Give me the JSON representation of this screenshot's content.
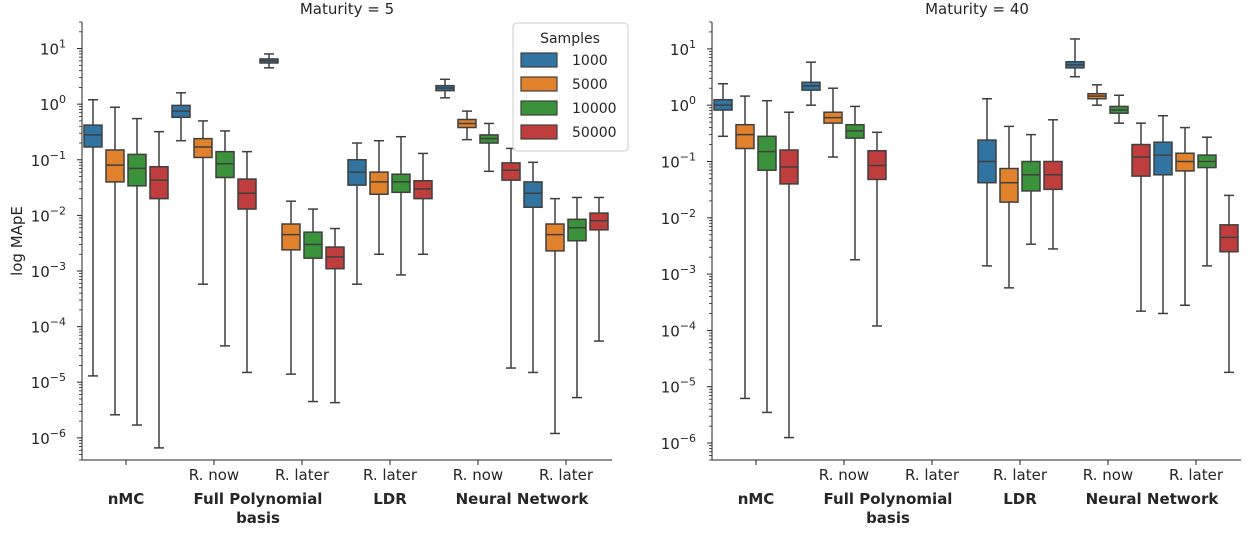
{
  "figure": {
    "colors": {
      "1000": "#3274a1",
      "5000": "#e1812c",
      "10000": "#3a923a",
      "50000": "#c03d3e"
    },
    "legend": {
      "title": "Samples",
      "entries": [
        "1000",
        "5000",
        "10000",
        "50000"
      ],
      "placement": "top-right of left panel"
    }
  },
  "chart_data": [
    {
      "type": "box",
      "title": "Maturity = 5",
      "ylabel": "log MApE",
      "yscale": "log",
      "ylim": [
        4e-07,
        30
      ],
      "yticks": [
        {
          "value": 1e-06,
          "label": "10",
          "exp": "−6"
        },
        {
          "value": 1e-05,
          "label": "10",
          "exp": "−5"
        },
        {
          "value": 0.0001,
          "label": "10",
          "exp": "−4"
        },
        {
          "value": 0.001,
          "label": "10",
          "exp": "−3"
        },
        {
          "value": 0.01,
          "label": "10",
          "exp": "−2"
        },
        {
          "value": 0.1,
          "label": "10",
          "exp": "−1"
        },
        {
          "value": 1,
          "label": "10",
          "exp": "0"
        },
        {
          "value": 10,
          "label": "10",
          "exp": "1"
        }
      ],
      "categories": [
        "",
        "R. now",
        "R. later",
        "R. later",
        "R. now",
        "R. later"
      ],
      "groups": [
        {
          "label": "nMC",
          "span": [
            0,
            0
          ]
        },
        {
          "label": "Full Polynomial\nbasis",
          "span": [
            1,
            2
          ]
        },
        {
          "label": "LDR",
          "span": [
            3,
            3
          ]
        },
        {
          "label": "Neural Network",
          "span": [
            4,
            5
          ]
        }
      ],
      "boxes": [
        {
          "cat": 0,
          "samples": "1000",
          "whislo": 1.3e-05,
          "q1": 0.17,
          "med": 0.28,
          "q3": 0.42,
          "whishi": 1.2
        },
        {
          "cat": 0,
          "samples": "5000",
          "whislo": 2.6e-06,
          "q1": 0.04,
          "med": 0.08,
          "q3": 0.15,
          "whishi": 0.88
        },
        {
          "cat": 0,
          "samples": "10000",
          "whislo": 1.7e-06,
          "q1": 0.034,
          "med": 0.07,
          "q3": 0.125,
          "whishi": 0.55
        },
        {
          "cat": 0,
          "samples": "50000",
          "whislo": 6.6e-07,
          "q1": 0.02,
          "med": 0.043,
          "q3": 0.075,
          "whishi": 0.32
        },
        {
          "cat": 1,
          "samples": "1000",
          "whislo": 0.22,
          "q1": 0.58,
          "med": 0.75,
          "q3": 0.95,
          "whishi": 1.6
        },
        {
          "cat": 1,
          "samples": "5000",
          "whislo": 0.00058,
          "q1": 0.11,
          "med": 0.17,
          "q3": 0.24,
          "whishi": 0.5
        },
        {
          "cat": 1,
          "samples": "10000",
          "whislo": 4.5e-05,
          "q1": 0.048,
          "med": 0.085,
          "q3": 0.14,
          "whishi": 0.33
        },
        {
          "cat": 1,
          "samples": "50000",
          "whislo": 1.5e-05,
          "q1": 0.013,
          "med": 0.025,
          "q3": 0.045,
          "whishi": 0.14
        },
        {
          "cat": 2,
          "samples": "1000",
          "whislo": 4.5,
          "q1": 5.5,
          "med": 6.0,
          "q3": 6.5,
          "whishi": 8.0
        },
        {
          "cat": 2,
          "samples": "5000",
          "whislo": 1.4e-05,
          "q1": 0.0024,
          "med": 0.0045,
          "q3": 0.007,
          "whishi": 0.018
        },
        {
          "cat": 2,
          "samples": "10000",
          "whislo": 4.5e-06,
          "q1": 0.0017,
          "med": 0.003,
          "q3": 0.005,
          "whishi": 0.013
        },
        {
          "cat": 2,
          "samples": "50000",
          "whislo": 4.3e-06,
          "q1": 0.0011,
          "med": 0.0018,
          "q3": 0.0027,
          "whishi": 0.0058
        },
        {
          "cat": 3,
          "samples": "1000",
          "whislo": 0.00058,
          "q1": 0.035,
          "med": 0.06,
          "q3": 0.1,
          "whishi": 0.2
        },
        {
          "cat": 3,
          "samples": "5000",
          "whislo": 0.002,
          "q1": 0.024,
          "med": 0.04,
          "q3": 0.06,
          "whishi": 0.22
        },
        {
          "cat": 3,
          "samples": "10000",
          "whislo": 0.00085,
          "q1": 0.026,
          "med": 0.04,
          "q3": 0.055,
          "whishi": 0.26
        },
        {
          "cat": 3,
          "samples": "50000",
          "whislo": 0.002,
          "q1": 0.02,
          "med": 0.03,
          "q3": 0.042,
          "whishi": 0.13
        },
        {
          "cat": 4,
          "samples": "1000",
          "whislo": 1.3,
          "q1": 1.75,
          "med": 1.95,
          "q3": 2.15,
          "whishi": 2.8
        },
        {
          "cat": 4,
          "samples": "5000",
          "whislo": 0.23,
          "q1": 0.38,
          "med": 0.45,
          "q3": 0.53,
          "whishi": 0.75
        },
        {
          "cat": 4,
          "samples": "10000",
          "whislo": 0.062,
          "q1": 0.2,
          "med": 0.24,
          "q3": 0.28,
          "whishi": 0.45
        },
        {
          "cat": 4,
          "samples": "50000",
          "whislo": 1.8e-05,
          "q1": 0.043,
          "med": 0.065,
          "q3": 0.088,
          "whishi": 0.16
        },
        {
          "cat": 5,
          "samples": "1000",
          "whislo": 1.5e-05,
          "q1": 0.014,
          "med": 0.025,
          "q3": 0.04,
          "whishi": 0.09
        },
        {
          "cat": 5,
          "samples": "5000",
          "whislo": 1.2e-06,
          "q1": 0.0023,
          "med": 0.0045,
          "q3": 0.007,
          "whishi": 0.02
        },
        {
          "cat": 5,
          "samples": "10000",
          "whislo": 5.3e-06,
          "q1": 0.0035,
          "med": 0.006,
          "q3": 0.0085,
          "whishi": 0.021
        },
        {
          "cat": 5,
          "samples": "50000",
          "whislo": 5.5e-05,
          "q1": 0.0055,
          "med": 0.008,
          "q3": 0.011,
          "whishi": 0.021
        }
      ]
    },
    {
      "type": "box",
      "title": "Maturity = 40",
      "ylabel": "",
      "yscale": "log",
      "ylim": [
        5e-07,
        30
      ],
      "yticks": [
        {
          "value": 1e-06,
          "label": "10",
          "exp": "−6"
        },
        {
          "value": 1e-05,
          "label": "10",
          "exp": "−5"
        },
        {
          "value": 0.0001,
          "label": "10",
          "exp": "−4"
        },
        {
          "value": 0.001,
          "label": "10",
          "exp": "−3"
        },
        {
          "value": 0.01,
          "label": "10",
          "exp": "−2"
        },
        {
          "value": 0.1,
          "label": "10",
          "exp": "−1"
        },
        {
          "value": 1,
          "label": "10",
          "exp": "0"
        },
        {
          "value": 10,
          "label": "10",
          "exp": "1"
        }
      ],
      "categories": [
        "",
        "R. now",
        "R. later",
        "R. later",
        "R. now",
        "R. later"
      ],
      "groups": [
        {
          "label": "nMC",
          "span": [
            0,
            0
          ]
        },
        {
          "label": "Full Polynomial\nbasis",
          "span": [
            1,
            2
          ]
        },
        {
          "label": "LDR",
          "span": [
            3,
            3
          ]
        },
        {
          "label": "Neural Network",
          "span": [
            4,
            5
          ]
        }
      ],
      "boxes": [
        {
          "cat": 0,
          "samples": "1000",
          "whislo": 0.28,
          "q1": 0.82,
          "med": 1.0,
          "q3": 1.25,
          "whishi": 2.4
        },
        {
          "cat": 0,
          "samples": "5000",
          "whislo": 6.2e-06,
          "q1": 0.17,
          "med": 0.3,
          "q3": 0.45,
          "whishi": 1.45
        },
        {
          "cat": 0,
          "samples": "10000",
          "whislo": 3.5e-06,
          "q1": 0.07,
          "med": 0.15,
          "q3": 0.28,
          "whishi": 1.2
        },
        {
          "cat": 0,
          "samples": "50000",
          "whislo": 1.25e-06,
          "q1": 0.04,
          "med": 0.08,
          "q3": 0.16,
          "whishi": 0.75
        },
        {
          "cat": 1,
          "samples": "1000",
          "whislo": 1.0,
          "q1": 1.85,
          "med": 2.2,
          "q3": 2.55,
          "whishi": 5.8
        },
        {
          "cat": 1,
          "samples": "5000",
          "whislo": 0.12,
          "q1": 0.48,
          "med": 0.6,
          "q3": 0.75,
          "whishi": 2.0
        },
        {
          "cat": 1,
          "samples": "10000",
          "whislo": 0.0018,
          "q1": 0.26,
          "med": 0.35,
          "q3": 0.45,
          "whishi": 0.95
        },
        {
          "cat": 1,
          "samples": "50000",
          "whislo": 0.00012,
          "q1": 0.048,
          "med": 0.085,
          "q3": 0.155,
          "whishi": 0.33
        },
        {
          "cat": 3,
          "samples": "1000",
          "whislo": 0.0014,
          "q1": 0.042,
          "med": 0.1,
          "q3": 0.24,
          "whishi": 1.3
        },
        {
          "cat": 3,
          "samples": "5000",
          "whislo": 0.00057,
          "q1": 0.019,
          "med": 0.042,
          "q3": 0.075,
          "whishi": 0.42
        },
        {
          "cat": 3,
          "samples": "10000",
          "whislo": 0.0034,
          "q1": 0.03,
          "med": 0.058,
          "q3": 0.1,
          "whishi": 0.3
        },
        {
          "cat": 3,
          "samples": "50000",
          "whislo": 0.0028,
          "q1": 0.032,
          "med": 0.058,
          "q3": 0.1,
          "whishi": 0.55
        },
        {
          "cat": 4,
          "samples": "1000",
          "whislo": 3.2,
          "q1": 4.6,
          "med": 5.2,
          "q3": 5.9,
          "whishi": 15.0
        },
        {
          "cat": 4,
          "samples": "5000",
          "whislo": 1.0,
          "q1": 1.3,
          "med": 1.45,
          "q3": 1.6,
          "whishi": 2.3
        },
        {
          "cat": 4,
          "samples": "10000",
          "whislo": 0.48,
          "q1": 0.72,
          "med": 0.82,
          "q3": 0.95,
          "whishi": 1.5
        },
        {
          "cat": 4,
          "samples": "50000",
          "whislo": 0.00022,
          "q1": 0.055,
          "med": 0.12,
          "q3": 0.2,
          "whishi": 0.48
        },
        {
          "cat": 5,
          "samples": "1000",
          "whislo": 0.0002,
          "q1": 0.058,
          "med": 0.13,
          "q3": 0.22,
          "whishi": 0.65
        },
        {
          "cat": 5,
          "samples": "5000",
          "whislo": 0.00028,
          "q1": 0.068,
          "med": 0.1,
          "q3": 0.14,
          "whishi": 0.4
        },
        {
          "cat": 5,
          "samples": "10000",
          "whislo": 0.0014,
          "q1": 0.078,
          "med": 0.1,
          "q3": 0.13,
          "whishi": 0.27
        },
        {
          "cat": 5,
          "samples": "50000",
          "whislo": 1.8e-05,
          "q1": 0.0025,
          "med": 0.0045,
          "q3": 0.0075,
          "whishi": 0.025
        }
      ]
    }
  ]
}
